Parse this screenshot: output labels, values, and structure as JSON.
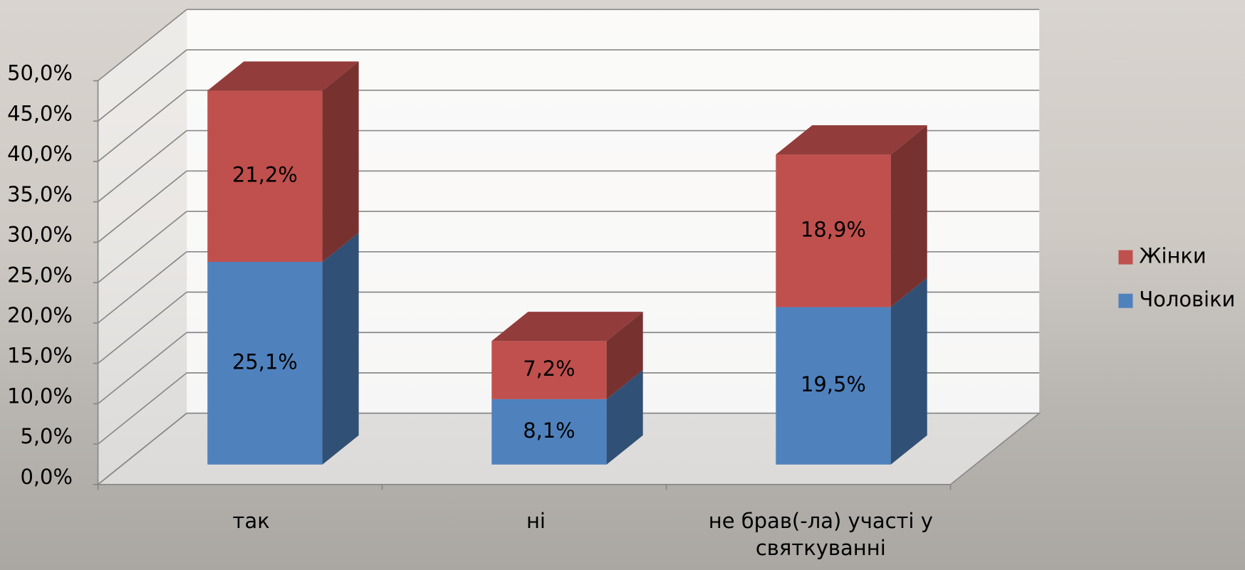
{
  "chart_data": {
    "type": "bar3d-stacked",
    "categories": [
      "так",
      "ні",
      "не брав(-ла) участі у святкуванні"
    ],
    "series": [
      {
        "name": "Чоловіки",
        "color": "#4f81bd",
        "values": [
          25.1,
          8.1,
          19.5
        ],
        "value_labels": [
          "25,1%",
          "8,1%",
          "19,5%"
        ]
      },
      {
        "name": "Жінки",
        "color": "#c0504d",
        "values": [
          21.2,
          7.2,
          18.9
        ],
        "value_labels": [
          "21,2%",
          "7,2%",
          "18,9%"
        ]
      }
    ],
    "ylim": [
      0,
      50
    ],
    "yticks": [
      {
        "value": 0,
        "label": "0,0%"
      },
      {
        "value": 5,
        "label": "5,0%"
      },
      {
        "value": 10,
        "label": "10,0%"
      },
      {
        "value": 15,
        "label": "15,0%"
      },
      {
        "value": 20,
        "label": "20,0%"
      },
      {
        "value": 25,
        "label": "25,0%"
      },
      {
        "value": 30,
        "label": "30,0%"
      },
      {
        "value": 35,
        "label": "35,0%"
      },
      {
        "value": 40,
        "label": "40,0%"
      },
      {
        "value": 45,
        "label": "45,0%"
      },
      {
        "value": 50,
        "label": "50,0%"
      }
    ],
    "grid": true
  }
}
